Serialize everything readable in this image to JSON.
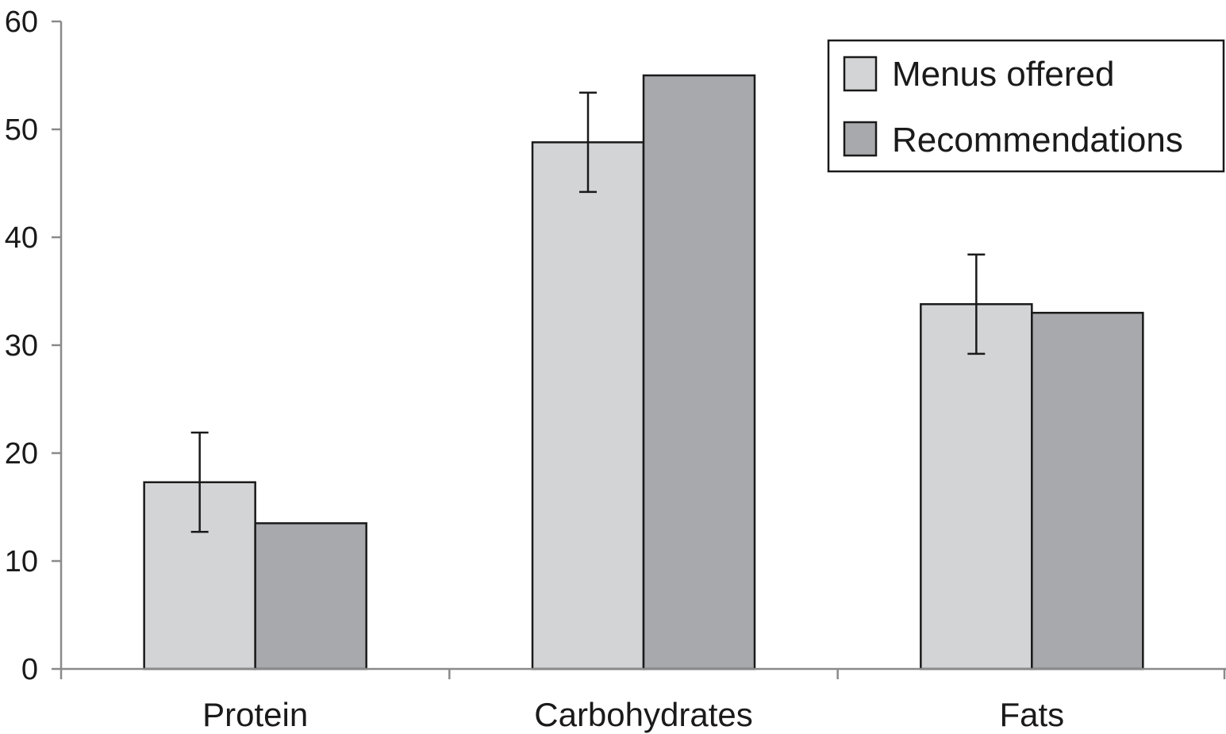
{
  "chart_data": {
    "type": "bar",
    "categories": [
      "Protein",
      "Carbohydrates",
      "Fats"
    ],
    "series": [
      {
        "name": "Menus offered",
        "values": [
          17.3,
          48.8,
          33.8
        ],
        "error": [
          4.6,
          4.6,
          4.6
        ],
        "color": "#d3d4d6"
      },
      {
        "name": "Recommendations",
        "values": [
          13.5,
          55,
          33
        ],
        "color": "#a8a9ad"
      }
    ],
    "ylim": [
      0,
      60
    ],
    "yticks": [
      "0",
      "10",
      "20",
      "30",
      "40",
      "50",
      "60"
    ],
    "title": "",
    "xlabel": "",
    "ylabel": "",
    "grid": false,
    "legend_position": "top-right"
  }
}
